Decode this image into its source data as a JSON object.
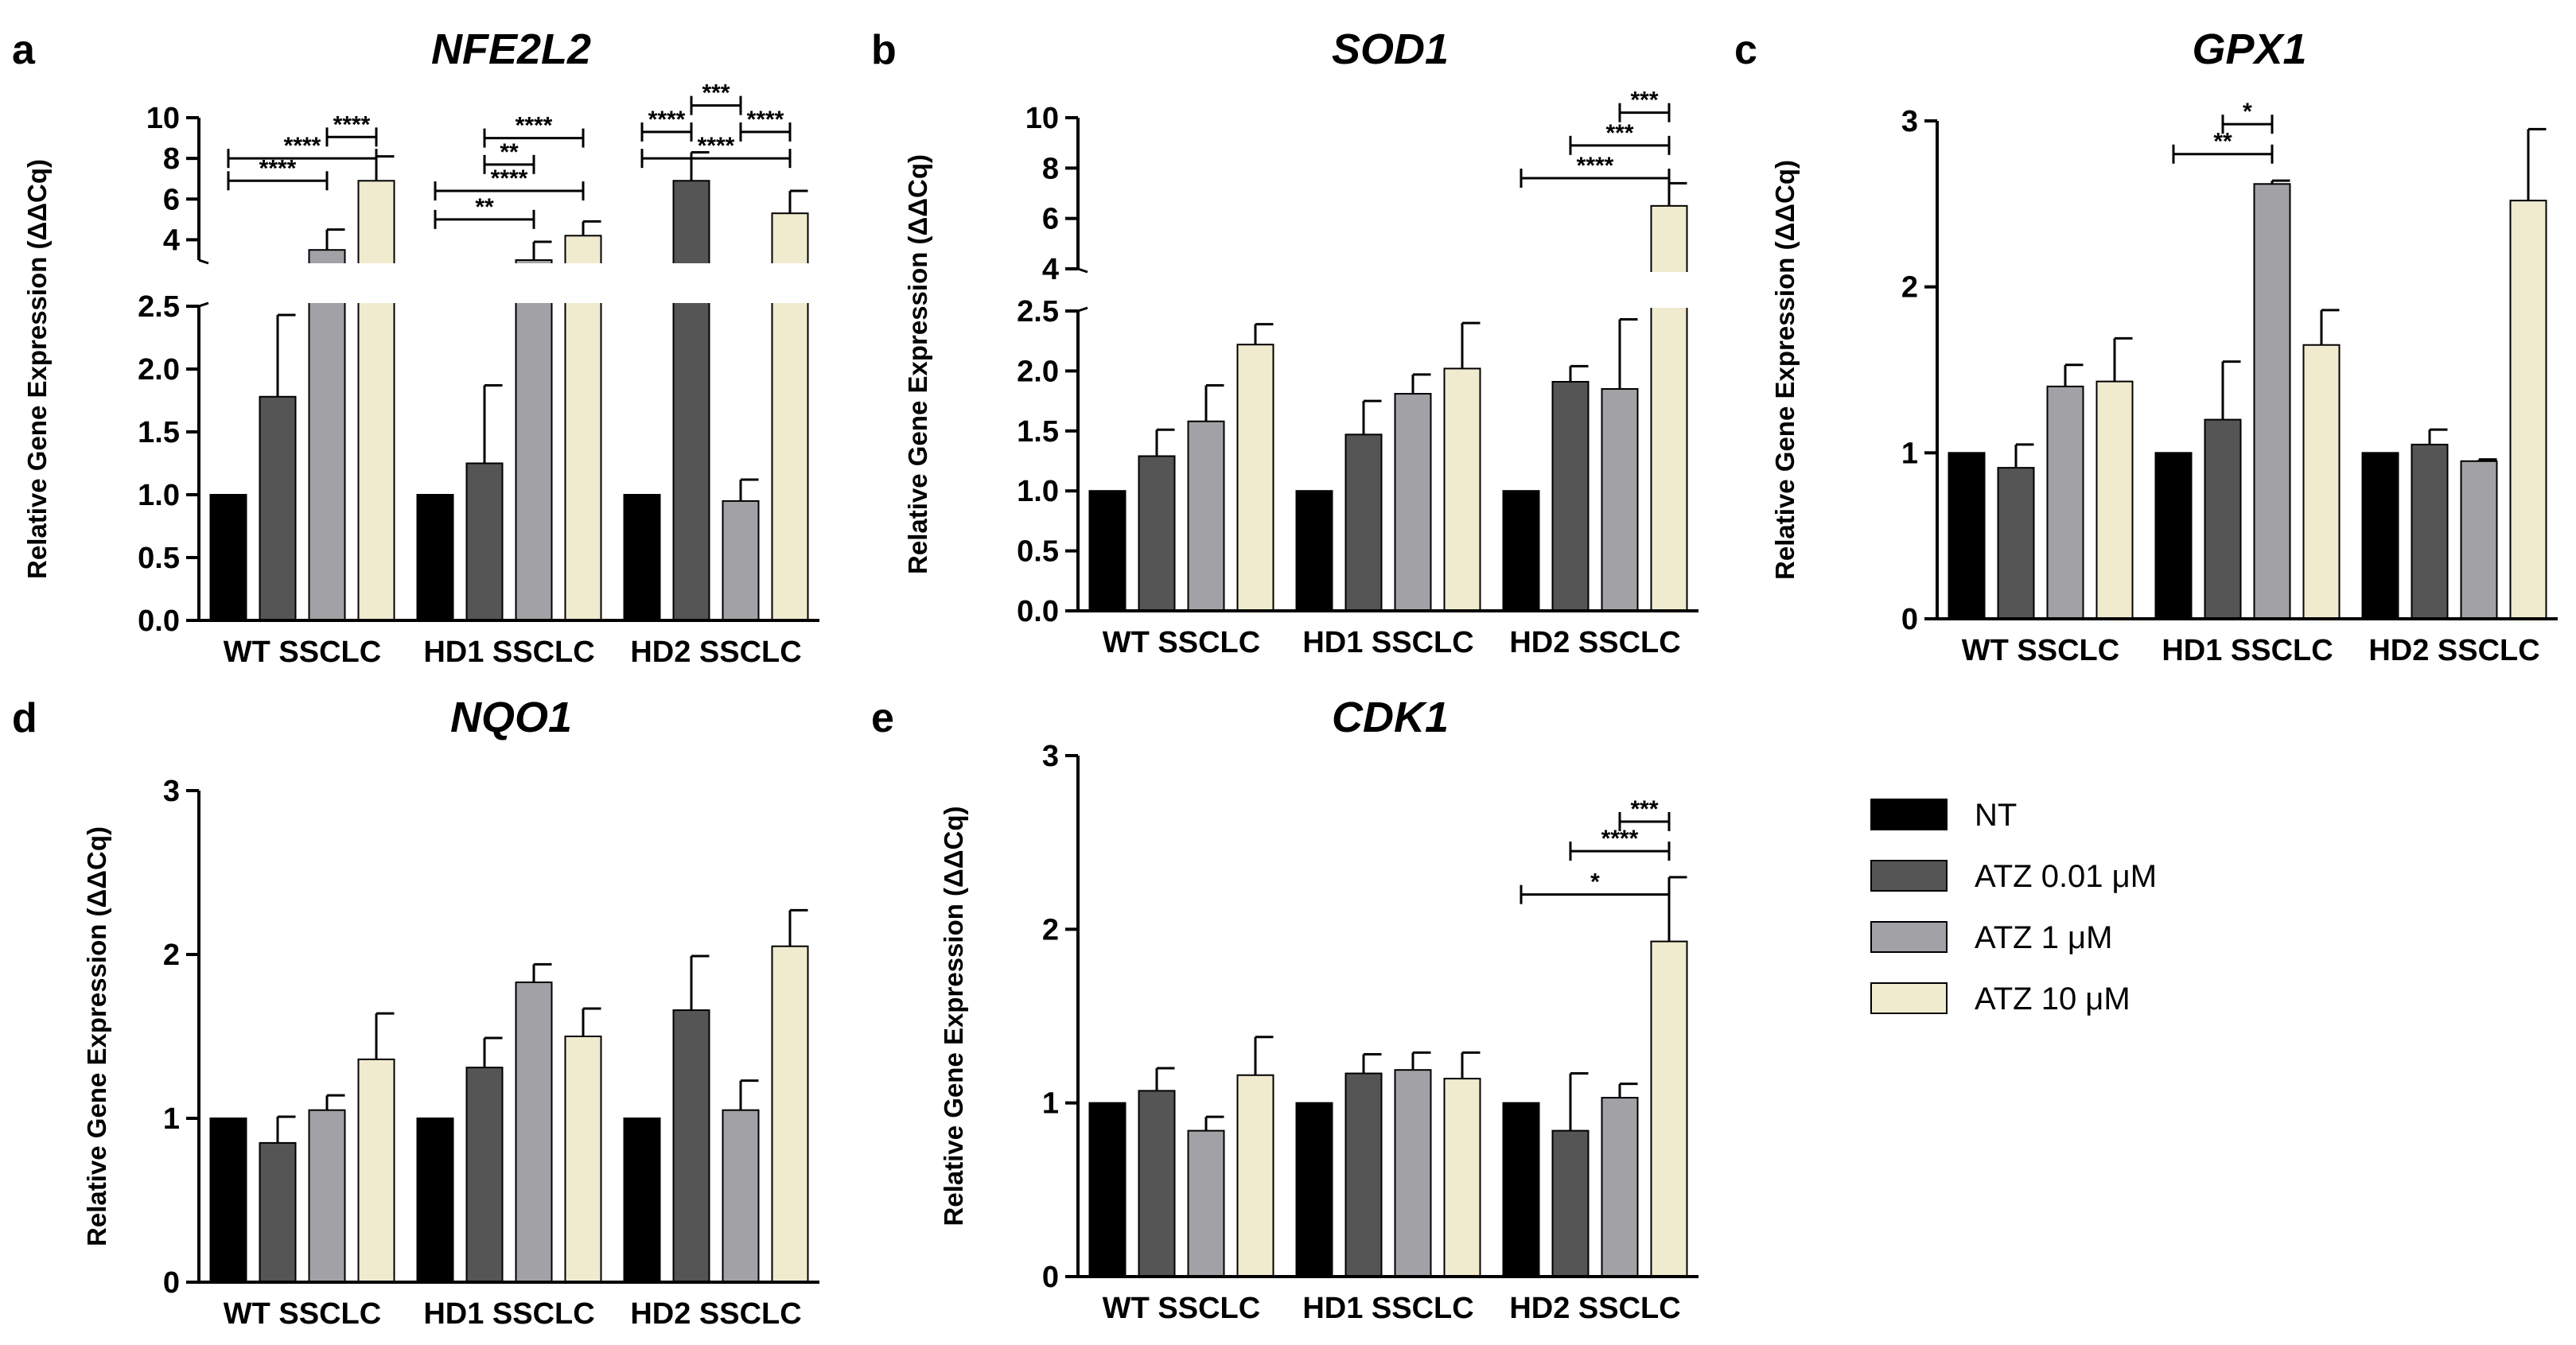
{
  "legend": [
    {
      "label": "NT",
      "color": "#000000"
    },
    {
      "label": "ATZ 0.01 μM",
      "color": "#555555"
    },
    {
      "label": "ATZ 1 μM",
      "color": "#a2a2a6"
    },
    {
      "label": "ATZ 10 μM",
      "color": "#f0ebcf"
    }
  ],
  "chart_data": [
    {
      "letter": "a",
      "type": "bar",
      "title": "NFE2L2",
      "ylabel": "Relative Gene Expression (ΔΔCq)",
      "categories": [
        "WT SSCLC",
        "HD1 SSCLC",
        "HD2 SSCLC"
      ],
      "broken_axis": true,
      "lower_ylim": [
        0,
        2.5
      ],
      "lower_ticks": [
        "0.0",
        "0.5",
        "1.0",
        "1.5",
        "2.0",
        "2.5"
      ],
      "upper_ylim": [
        3,
        10
      ],
      "upper_ticks": [
        "4",
        "6",
        "8",
        "10"
      ],
      "series": [
        {
          "values": [
            1.0,
            1.0,
            1.0
          ],
          "errors": [
            0,
            0,
            0
          ]
        },
        {
          "values": [
            1.78,
            1.25,
            6.9
          ],
          "errors": [
            0.65,
            0.62,
            1.4
          ]
        },
        {
          "values": [
            3.5,
            3.0,
            0.95
          ],
          "errors": [
            1.0,
            0.9,
            0.17
          ]
        },
        {
          "values": [
            6.9,
            4.2,
            5.3
          ],
          "errors": [
            1.2,
            0.7,
            1.1
          ]
        }
      ],
      "significance": [
        {
          "group": 0,
          "from": 2,
          "to": 3,
          "level": 9.05,
          "label": "****"
        },
        {
          "group": 0,
          "from": 0,
          "to": 3,
          "level": 8.0,
          "label": "****"
        },
        {
          "group": 0,
          "from": 0,
          "to": 2,
          "level": 6.9,
          "label": "****"
        },
        {
          "group": 1,
          "from": 1,
          "to": 3,
          "level": 9.0,
          "label": "****"
        },
        {
          "group": 1,
          "from": 1,
          "to": 2,
          "level": 7.7,
          "label": "**"
        },
        {
          "group": 1,
          "from": 0,
          "to": 3,
          "level": 6.4,
          "label": "****"
        },
        {
          "group": 1,
          "from": 0,
          "to": 2,
          "level": 5.0,
          "label": "**"
        },
        {
          "group": 2,
          "from": 1,
          "to": 2,
          "level": 10.6,
          "label": "***"
        },
        {
          "group": 2,
          "from": 0,
          "to": 1,
          "level": 9.3,
          "label": "****"
        },
        {
          "group": 2,
          "from": 2,
          "to": 3,
          "level": 9.3,
          "label": "****"
        },
        {
          "group": 2,
          "from": 0,
          "to": 3,
          "level": 8.0,
          "label": "****"
        }
      ]
    },
    {
      "letter": "b",
      "type": "bar",
      "title": "SOD1",
      "ylabel": "Relative Gene Expression (ΔΔCq)",
      "categories": [
        "WT SSCLC",
        "HD1 SSCLC",
        "HD2 SSCLC"
      ],
      "broken_axis": true,
      "lower_ylim": [
        0,
        2.5
      ],
      "lower_ticks": [
        "0.0",
        "0.5",
        "1.0",
        "1.5",
        "2.0",
        "2.5"
      ],
      "upper_ylim": [
        4,
        10
      ],
      "upper_ticks": [
        "4",
        "6",
        "8",
        "10"
      ],
      "series": [
        {
          "values": [
            1.0,
            1.0,
            1.0
          ],
          "errors": [
            0,
            0,
            0
          ]
        },
        {
          "values": [
            1.29,
            1.47,
            1.91
          ],
          "errors": [
            0.22,
            0.28,
            0.13
          ]
        },
        {
          "values": [
            1.58,
            1.81,
            1.85
          ],
          "errors": [
            0.3,
            0.16,
            0.58
          ]
        },
        {
          "values": [
            2.22,
            2.02,
            6.5
          ],
          "errors": [
            0.17,
            0.38,
            0.9
          ]
        }
      ],
      "significance": [
        {
          "group": 2,
          "from": 2,
          "to": 3,
          "level": 10.2,
          "label": "***"
        },
        {
          "group": 2,
          "from": 1,
          "to": 3,
          "level": 8.9,
          "label": "***"
        },
        {
          "group": 2,
          "from": 0,
          "to": 3,
          "level": 7.6,
          "label": "****"
        }
      ]
    },
    {
      "letter": "c",
      "type": "bar",
      "title": "GPX1",
      "ylabel": "Relative Gene Expression (ΔΔCq)",
      "categories": [
        "WT SSCLC",
        "HD1 SSCLC",
        "HD2 SSCLC"
      ],
      "broken_axis": false,
      "ylim": [
        0,
        3
      ],
      "ticks": [
        "0",
        "1",
        "2",
        "3"
      ],
      "series": [
        {
          "values": [
            1.0,
            1.0,
            1.0
          ],
          "errors": [
            0,
            0,
            0
          ]
        },
        {
          "values": [
            0.91,
            1.2,
            1.05
          ],
          "errors": [
            0.14,
            0.35,
            0.09
          ]
        },
        {
          "values": [
            1.4,
            2.62,
            0.95
          ],
          "errors": [
            0.13,
            0.02,
            0.01
          ]
        },
        {
          "values": [
            1.43,
            1.65,
            2.52
          ],
          "errors": [
            0.26,
            0.21,
            0.43
          ]
        }
      ],
      "significance": [
        {
          "group": 1,
          "from": 1,
          "to": 2,
          "level": 2.98,
          "label": "*"
        },
        {
          "group": 1,
          "from": 0,
          "to": 2,
          "level": 2.8,
          "label": "**"
        }
      ]
    },
    {
      "letter": "d",
      "type": "bar",
      "title": "NQO1",
      "ylabel": "Relative Gene Expression (ΔΔCq)",
      "categories": [
        "WT SSCLC",
        "HD1 SSCLC",
        "HD2 SSCLC"
      ],
      "broken_axis": false,
      "ylim": [
        0,
        3
      ],
      "ticks": [
        "0",
        "1",
        "2",
        "3"
      ],
      "series": [
        {
          "values": [
            1.0,
            1.0,
            1.0
          ],
          "errors": [
            0,
            0,
            0
          ]
        },
        {
          "values": [
            0.85,
            1.31,
            1.66
          ],
          "errors": [
            0.16,
            0.18,
            0.33
          ]
        },
        {
          "values": [
            1.05,
            1.83,
            1.05
          ],
          "errors": [
            0.09,
            0.11,
            0.18
          ]
        },
        {
          "values": [
            1.36,
            1.5,
            2.05
          ],
          "errors": [
            0.28,
            0.17,
            0.22
          ]
        }
      ],
      "significance": []
    },
    {
      "letter": "e",
      "type": "bar",
      "title": "CDK1",
      "ylabel": "Relative Gene Expression (ΔΔCq)",
      "categories": [
        "WT SSCLC",
        "HD1 SSCLC",
        "HD2 SSCLC"
      ],
      "broken_axis": false,
      "ylim": [
        0,
        3
      ],
      "ticks": [
        "0",
        "1",
        "2",
        "3"
      ],
      "series": [
        {
          "values": [
            1.0,
            1.0,
            1.0
          ],
          "errors": [
            0,
            0,
            0
          ]
        },
        {
          "values": [
            1.07,
            1.17,
            0.84
          ],
          "errors": [
            0.13,
            0.11,
            0.33
          ]
        },
        {
          "values": [
            0.84,
            1.19,
            1.03
          ],
          "errors": [
            0.08,
            0.1,
            0.08
          ]
        },
        {
          "values": [
            1.16,
            1.14,
            1.93
          ],
          "errors": [
            0.22,
            0.15,
            0.37
          ]
        }
      ],
      "significance": [
        {
          "group": 2,
          "from": 2,
          "to": 3,
          "level": 2.62,
          "label": "***"
        },
        {
          "group": 2,
          "from": 1,
          "to": 3,
          "level": 2.45,
          "label": "****"
        },
        {
          "group": 2,
          "from": 0,
          "to": 3,
          "level": 2.2,
          "label": "*"
        }
      ]
    }
  ]
}
